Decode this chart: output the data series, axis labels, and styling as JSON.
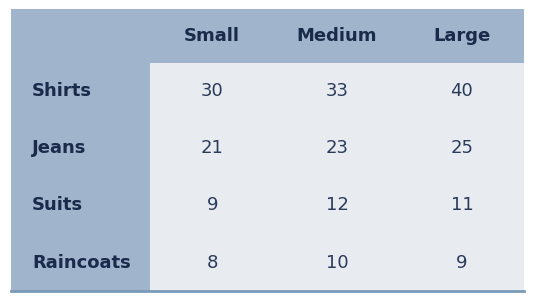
{
  "col_headers": [
    "Small",
    "Medium",
    "Large"
  ],
  "row_headers": [
    "Shirts",
    "Jeans",
    "Suits",
    "Raincoats"
  ],
  "values": [
    [
      30,
      33,
      40
    ],
    [
      21,
      23,
      25
    ],
    [
      9,
      12,
      11
    ],
    [
      8,
      10,
      9
    ]
  ],
  "header_bg_color": "#a0b4cc",
  "row_header_bg_color": "#a0b4cc",
  "data_bg_color": "#e8ecf0",
  "header_text_color": "#1a2a4a",
  "row_header_text_color": "#1a2a4a",
  "data_text_color": "#2a3a5a",
  "border_color": "#7a9ab8",
  "background_color": "#ffffff",
  "header_fontsize": 13,
  "data_fontsize": 13
}
